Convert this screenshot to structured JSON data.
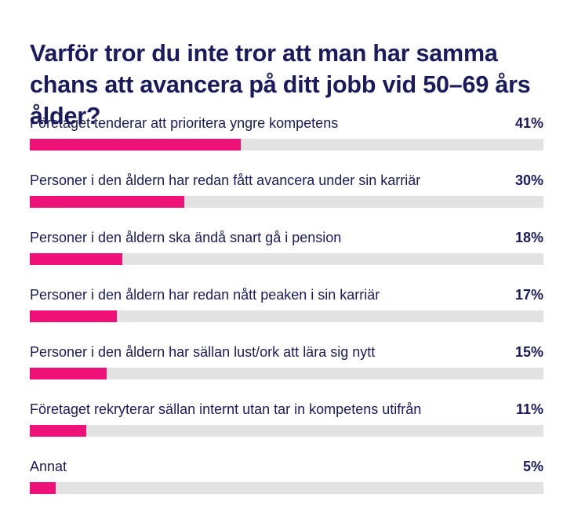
{
  "title": "Varför tror du inte tror att man har samma chans att avancera på ditt jobb vid 50–69 års ålder?",
  "colors": {
    "bar": "#ee1177",
    "track": "#e2e2e2",
    "text": "#1a1a5e"
  },
  "chart_data": {
    "type": "bar",
    "orientation": "horizontal",
    "title": "Varför tror du inte tror att man har samma chans att avancera på ditt jobb vid 50–69 års ålder?",
    "xlim": [
      0,
      100
    ],
    "grid": false,
    "categories": [
      "Företaget tenderar att prioritera yngre kompetens",
      "Personer i den åldern har redan fått avancera under sin karriär",
      "Personer i den åldern ska ändå snart gå i pension",
      "Personer i den åldern har redan nått peaken i sin karriär",
      "Personer i den åldern har sällan lust/ork att lära sig nytt",
      "Företaget rekryterar sällan internt utan tar in kompetens utifrån",
      "Annat"
    ],
    "values": [
      41,
      30,
      18,
      17,
      15,
      11,
      5
    ],
    "value_labels": [
      "41%",
      "30%",
      "18%",
      "17%",
      "15%",
      "11%",
      "5%"
    ]
  }
}
